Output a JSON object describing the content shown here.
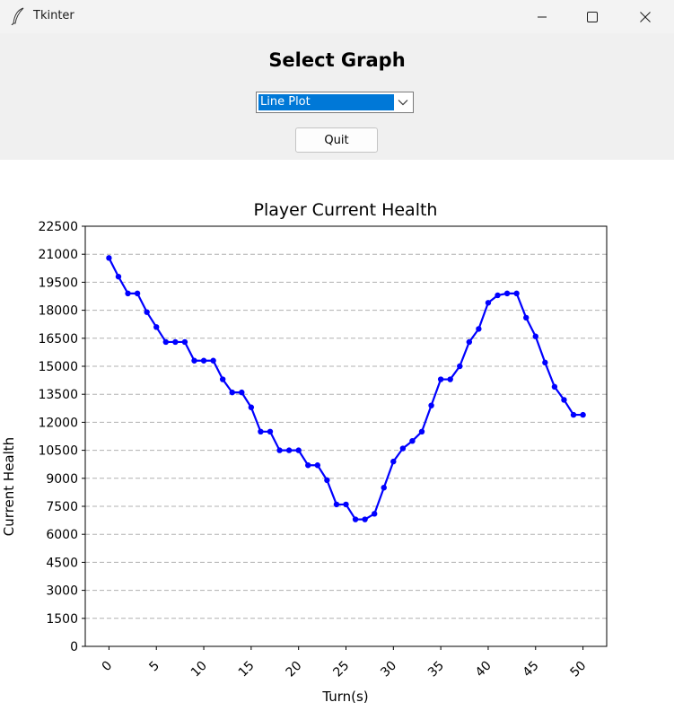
{
  "window": {
    "title": "Tkinter",
    "app_icon": "feather-icon",
    "minimize_icon": "minimize-icon",
    "maximize_icon": "maximize-icon",
    "close_icon": "close-icon"
  },
  "controls": {
    "heading": "Select Graph",
    "graph_select": {
      "value": "Line Plot",
      "arrow_icon": "chevron-down-icon"
    },
    "quit_label": "Quit"
  },
  "colors": {
    "line": "#0000ff",
    "grid": "#b0b0b0",
    "accent_select": "#0078d7"
  },
  "chart_data": {
    "type": "line",
    "title": "Player Current Health",
    "xlabel": "Turn(s)",
    "ylabel": "Current Health",
    "xlim": [
      -2.5,
      52.5
    ],
    "ylim": [
      0,
      22500
    ],
    "xticks": [
      "0",
      "5",
      "10",
      "15",
      "20",
      "25",
      "30",
      "35",
      "40",
      "45",
      "50"
    ],
    "yticks": [
      "0",
      "1500",
      "3000",
      "4500",
      "6000",
      "7500",
      "9000",
      "10500",
      "12000",
      "13500",
      "15000",
      "16500",
      "18000",
      "19500",
      "21000",
      "22500"
    ],
    "grid": "horizontal dashed",
    "x": [
      0,
      1,
      2,
      3,
      4,
      5,
      6,
      7,
      8,
      9,
      10,
      11,
      12,
      13,
      14,
      15,
      16,
      17,
      18,
      19,
      20,
      21,
      22,
      23,
      24,
      25,
      26,
      27,
      28,
      29,
      30,
      31,
      32,
      33,
      34,
      35,
      36,
      37,
      38,
      39,
      40,
      41,
      42,
      43,
      44,
      45,
      46,
      47,
      48,
      49,
      50
    ],
    "series": [
      {
        "values": [
          20800,
          19800,
          18900,
          18900,
          17900,
          17100,
          16300,
          16300,
          16300,
          15300,
          15300,
          15300,
          14300,
          13600,
          13600,
          12800,
          11500,
          11500,
          10500,
          10500,
          10500,
          9700,
          9700,
          8900,
          7600,
          7600,
          6800,
          6800,
          7100,
          8500,
          9900,
          10600,
          11000,
          11500,
          12900,
          14300,
          14300,
          15000,
          16300,
          17000,
          18400,
          18800,
          18900,
          18900,
          17600,
          16600,
          15200,
          13900,
          13200,
          12400,
          12400
        ]
      }
    ]
  }
}
